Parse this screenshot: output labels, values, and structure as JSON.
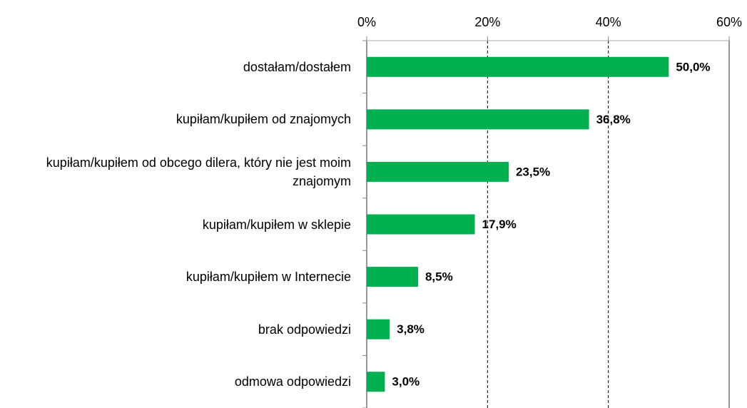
{
  "chart_data": {
    "type": "bar",
    "orientation": "horizontal",
    "categories": [
      "dostałam/dostałem",
      "kupiłam/kupiłem od znajomych",
      "kupiłam/kupiłem od obcego dilera, który nie jest moim znajomym",
      "kupiłam/kupiłem w sklepie",
      "kupiłam/kupiłem w Internecie",
      "brak odpowiedzi",
      "odmowa odpowiedzi"
    ],
    "values": [
      50.0,
      36.8,
      23.5,
      17.9,
      8.5,
      3.8,
      3.0
    ],
    "value_labels": [
      "50,0%",
      "36,8%",
      "23,5%",
      "17,9%",
      "8,5%",
      "3,8%",
      "3,0%"
    ],
    "color": "#00b050",
    "xlim": [
      0,
      60
    ],
    "xticks": [
      {
        "value": 0,
        "label": "0%"
      },
      {
        "value": 20,
        "label": "20%"
      },
      {
        "value": 40,
        "label": "40%"
      },
      {
        "value": 60,
        "label": "60%"
      }
    ],
    "grid": true
  }
}
